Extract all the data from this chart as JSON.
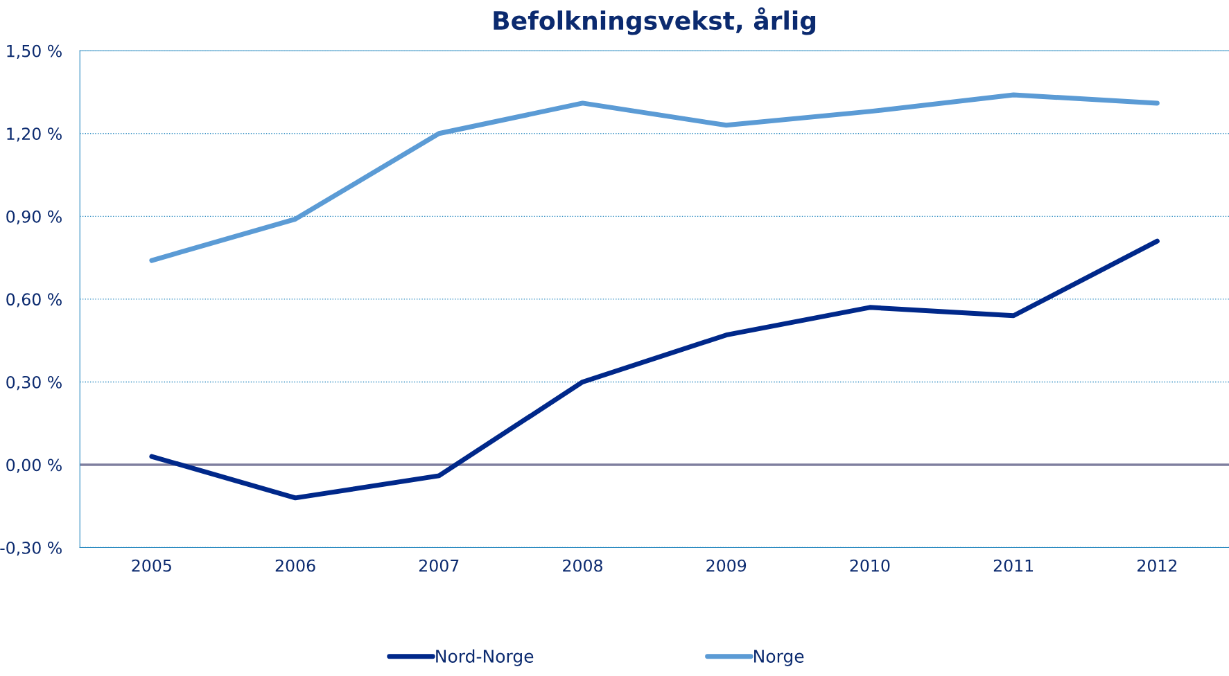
{
  "chart_data": {
    "type": "line",
    "title": "Befolkningsvekst, årlig",
    "categories": [
      "2005",
      "2006",
      "2007",
      "2008",
      "2009",
      "2010",
      "2011",
      "2012"
    ],
    "series": [
      {
        "name": "Nord-Norge",
        "color": "#00288a",
        "values": [
          0.03,
          -0.12,
          -0.04,
          0.3,
          0.47,
          0.57,
          0.54,
          0.81
        ]
      },
      {
        "name": "Norge",
        "color": "#5b9bd5",
        "values": [
          0.74,
          0.89,
          1.2,
          1.31,
          1.23,
          1.28,
          1.34,
          1.31
        ]
      }
    ],
    "ylim": [
      -0.3,
      1.5
    ],
    "yticks": [
      {
        "value": -0.3,
        "label": "-0,30 %"
      },
      {
        "value": 0,
        "label": "0,00 %"
      },
      {
        "value": 0.3,
        "label": "0,30 %"
      },
      {
        "value": 0.6,
        "label": "0,60 %"
      },
      {
        "value": 0.9,
        "label": "0,90 %"
      },
      {
        "value": 1.2,
        "label": "1,20 %"
      },
      {
        "value": 1.5,
        "label": "1,50 %"
      }
    ],
    "ref_lines": [
      {
        "axis": "y",
        "value": 0,
        "label": null,
        "color": "#7f7f9f",
        "line_style": "solid"
      }
    ],
    "grid": "y",
    "legend": "bottom",
    "marker": "none",
    "line_style": "solid"
  }
}
